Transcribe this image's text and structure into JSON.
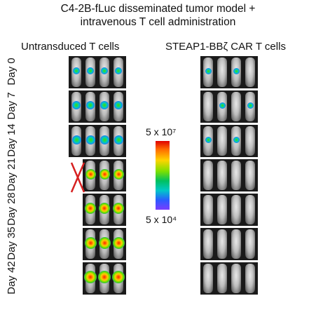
{
  "title_line1": "C4-2B-fLuc disseminated tumor model +",
  "title_line2": "intravenous T cell administration",
  "group_left": "Untransduced T cells",
  "group_right": "STEAP1-BBζ CAR T cells",
  "colorbar": {
    "max_label": "5 x 10⁷",
    "min_label": "5 x 10⁴",
    "gradient_colors": [
      "#e00000",
      "#ff6a00",
      "#ffd400",
      "#7ee000",
      "#00c060",
      "#00c8c8",
      "#2a5cff",
      "#7a3cff"
    ]
  },
  "days": [
    {
      "label": "Day 0"
    },
    {
      "label": "Day 7"
    },
    {
      "label": "Day 14"
    },
    {
      "label": "Day 21"
    },
    {
      "label": "Day 28"
    },
    {
      "label": "Day 35"
    },
    {
      "label": "Day 42"
    }
  ],
  "crossed_out_mark": "red-x"
}
